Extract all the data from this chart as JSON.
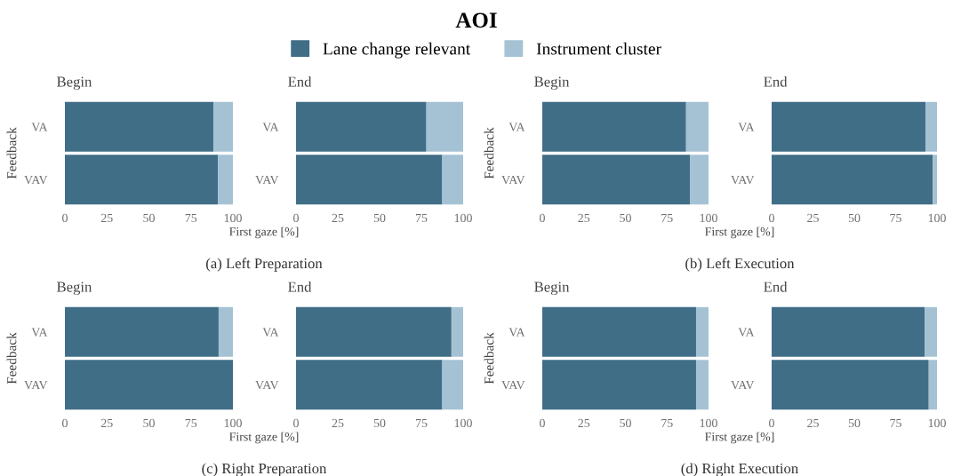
{
  "chart_data": [
    {
      "type": "bar",
      "orientation": "horizontal",
      "stacked": true,
      "title": "Begin",
      "legend_title": "AOI",
      "legend": "top",
      "ylabel": "Feedback",
      "xlabel": "First gaze [%]",
      "annotations": [
        "(a) Left Preparation"
      ],
      "categories": [
        "VA",
        "VAV"
      ],
      "xlim": [
        0,
        100
      ],
      "xticks": [
        0,
        25,
        50,
        75,
        100
      ],
      "grid": false,
      "series": [
        {
          "name": "Lane change relevant",
          "color": "#416e87",
          "values": [
            88.5,
            91
          ]
        },
        {
          "name": "Instrument cluster",
          "color": "#a5c2d4",
          "values": [
            11.5,
            9
          ]
        }
      ]
    },
    {
      "type": "bar",
      "orientation": "horizontal",
      "stacked": true,
      "title": "End",
      "categories": [
        "VA",
        "VAV"
      ],
      "xlim": [
        0,
        100
      ],
      "xticks": [
        0,
        25,
        50,
        75,
        100
      ],
      "grid": false,
      "series": [
        {
          "color": "#416e87",
          "values": [
            78,
            87.5
          ]
        },
        {
          "color": "#a5c2d4",
          "values": [
            22,
            12.5
          ]
        }
      ]
    },
    {
      "type": "bar",
      "orientation": "horizontal",
      "stacked": true,
      "title": "Begin",
      "ylabel": "Feedback",
      "xlabel": "First gaze [%]",
      "annotations": [
        "(b) Left Execution"
      ],
      "categories": [
        "VA",
        "VAV"
      ],
      "xlim": [
        0,
        100
      ],
      "xticks": [
        0,
        25,
        50,
        75,
        100
      ],
      "grid": false,
      "series": [
        {
          "color": "#416e87",
          "values": [
            86.5,
            89
          ]
        },
        {
          "color": "#a5c2d4",
          "values": [
            13.5,
            11
          ]
        }
      ]
    },
    {
      "type": "bar",
      "orientation": "horizontal",
      "stacked": true,
      "title": "End",
      "categories": [
        "VA",
        "VAV"
      ],
      "xlim": [
        0,
        100
      ],
      "xticks": [
        0,
        25,
        50,
        75,
        100
      ],
      "grid": false,
      "series": [
        {
          "color": "#416e87",
          "values": [
            93,
            97.5
          ]
        },
        {
          "color": "#a5c2d4",
          "values": [
            7,
            2.5
          ]
        }
      ]
    },
    {
      "type": "bar",
      "orientation": "horizontal",
      "stacked": true,
      "title": "Begin",
      "ylabel": "Feedback",
      "xlabel": "First gaze [%]",
      "annotations": [
        "(c) Right Preparation"
      ],
      "categories": [
        "VA",
        "VAV"
      ],
      "xlim": [
        0,
        100
      ],
      "xticks": [
        0,
        25,
        50,
        75,
        100
      ],
      "grid": false,
      "series": [
        {
          "color": "#416e87",
          "values": [
            91.5,
            100
          ]
        },
        {
          "color": "#a5c2d4",
          "values": [
            8.5,
            0
          ]
        }
      ]
    },
    {
      "type": "bar",
      "orientation": "horizontal",
      "stacked": true,
      "title": "End",
      "categories": [
        "VA",
        "VAV"
      ],
      "xlim": [
        0,
        100
      ],
      "xticks": [
        0,
        25,
        50,
        75,
        100
      ],
      "grid": false,
      "series": [
        {
          "color": "#416e87",
          "values": [
            93,
            87.5
          ]
        },
        {
          "color": "#a5c2d4",
          "values": [
            7,
            12.5
          ]
        }
      ]
    },
    {
      "type": "bar",
      "orientation": "horizontal",
      "stacked": true,
      "title": "Begin",
      "ylabel": "Feedback",
      "xlabel": "First gaze [%]",
      "annotations": [
        "(d) Right Execution"
      ],
      "categories": [
        "VA",
        "VAV"
      ],
      "xlim": [
        0,
        100
      ],
      "xticks": [
        0,
        25,
        50,
        75,
        100
      ],
      "grid": false,
      "series": [
        {
          "color": "#416e87",
          "values": [
            92.5,
            92.5
          ]
        },
        {
          "color": "#a5c2d4",
          "values": [
            7.5,
            7.5
          ]
        }
      ]
    },
    {
      "type": "bar",
      "orientation": "horizontal",
      "stacked": true,
      "title": "End",
      "categories": [
        "VA",
        "VAV"
      ],
      "xlim": [
        0,
        100
      ],
      "xticks": [
        0,
        25,
        50,
        75,
        100
      ],
      "grid": false,
      "series": [
        {
          "color": "#416e87",
          "values": [
            92.5,
            95
          ]
        },
        {
          "color": "#a5c2d4",
          "values": [
            7.5,
            5
          ]
        }
      ]
    }
  ]
}
